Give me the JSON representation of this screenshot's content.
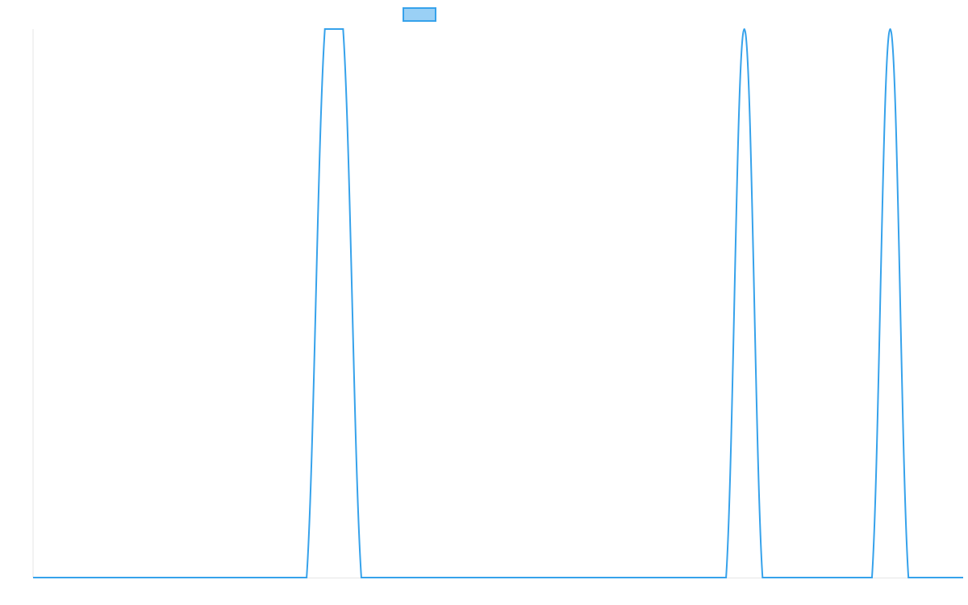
{
  "chart_data": {
    "type": "line",
    "series": [
      {
        "color": "#36a2eb",
        "values": [
          0,
          0,
          0,
          0,
          0,
          0,
          0,
          0,
          0,
          0,
          0,
          0,
          0,
          0,
          0,
          0,
          1,
          1,
          0,
          0,
          0,
          0,
          0,
          0,
          0,
          0,
          0,
          0,
          0,
          0,
          0,
          0,
          0,
          0,
          0,
          0,
          0,
          0,
          0,
          1,
          0,
          0,
          0,
          0,
          0,
          0,
          0,
          1,
          0,
          0,
          0,
          0
        ]
      }
    ],
    "ylim": [
      0,
      1
    ],
    "grid": false
  }
}
